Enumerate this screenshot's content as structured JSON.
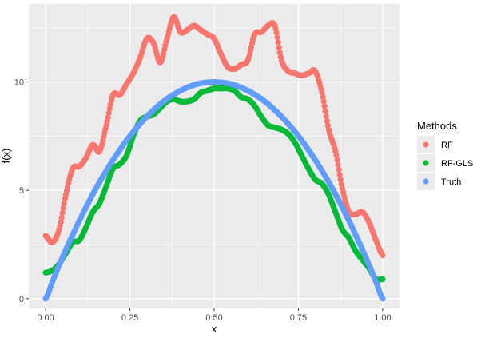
{
  "chart_data": {
    "type": "scatter",
    "title": "",
    "xlabel": "x",
    "ylabel": "f(x)",
    "xlim": [
      -0.05,
      1.05
    ],
    "ylim": [
      -0.45,
      13.6
    ],
    "x_ticks": [
      0,
      0.25,
      0.5,
      0.75,
      1
    ],
    "x_tick_labels": [
      "0.00",
      "0.25",
      "0.50",
      "0.75",
      "1.00"
    ],
    "y_ticks": [
      0,
      5,
      10
    ],
    "y_tick_labels": [
      "0",
      "5",
      "10"
    ],
    "grid": true,
    "legend": {
      "title": "Methods",
      "placement": "right"
    },
    "x": [
      0.0,
      0.02,
      0.04,
      0.06,
      0.08,
      0.1,
      0.12,
      0.14,
      0.16,
      0.18,
      0.2,
      0.22,
      0.24,
      0.26,
      0.28,
      0.3,
      0.32,
      0.34,
      0.36,
      0.38,
      0.4,
      0.42,
      0.44,
      0.46,
      0.48,
      0.5,
      0.52,
      0.54,
      0.56,
      0.58,
      0.6,
      0.62,
      0.64,
      0.66,
      0.68,
      0.7,
      0.72,
      0.74,
      0.76,
      0.78,
      0.8,
      0.82,
      0.84,
      0.86,
      0.88,
      0.9,
      0.92,
      0.94,
      0.96,
      0.98,
      1.0
    ],
    "series": [
      {
        "name": "RF",
        "color": "#F8766D",
        "values": [
          2.9,
          2.6,
          3.2,
          4.8,
          6.0,
          6.1,
          6.5,
          7.1,
          6.8,
          8.0,
          9.4,
          9.4,
          9.9,
          10.4,
          11.1,
          12.0,
          11.8,
          10.9,
          12.0,
          13.0,
          12.3,
          12.4,
          12.6,
          12.4,
          12.2,
          12.0,
          11.3,
          10.7,
          10.6,
          10.8,
          11.0,
          12.2,
          12.3,
          12.6,
          12.6,
          11.0,
          10.5,
          10.4,
          10.3,
          10.4,
          10.5,
          9.5,
          7.8,
          6.8,
          5.1,
          4.0,
          3.9,
          4.0,
          3.5,
          2.7,
          2.0
        ]
      },
      {
        "name": "RF-GLS",
        "color": "#00BA38",
        "values": [
          1.2,
          1.3,
          1.6,
          2.1,
          2.6,
          2.7,
          3.3,
          4.0,
          4.4,
          5.2,
          6.0,
          6.2,
          6.6,
          7.5,
          8.2,
          8.4,
          8.5,
          8.8,
          9.1,
          9.2,
          9.1,
          9.1,
          9.2,
          9.5,
          9.6,
          9.7,
          9.7,
          9.7,
          9.6,
          9.3,
          9.2,
          8.9,
          8.4,
          8.0,
          7.9,
          7.8,
          7.6,
          7.2,
          6.6,
          6.0,
          5.5,
          5.3,
          4.8,
          4.0,
          3.2,
          2.8,
          2.2,
          1.8,
          1.4,
          0.9,
          0.9
        ]
      },
      {
        "name": "Truth",
        "color": "#619CFF",
        "values": [
          0.0,
          0.78,
          1.54,
          2.26,
          2.94,
          3.6,
          4.22,
          4.82,
          5.38,
          5.9,
          6.4,
          6.86,
          7.3,
          7.7,
          8.06,
          8.4,
          8.7,
          8.98,
          9.22,
          9.42,
          9.6,
          9.74,
          9.86,
          9.94,
          9.98,
          10.0,
          9.98,
          9.94,
          9.86,
          9.74,
          9.6,
          9.42,
          9.22,
          8.98,
          8.7,
          8.4,
          8.06,
          7.7,
          7.3,
          6.86,
          6.4,
          5.9,
          5.38,
          4.82,
          4.22,
          3.6,
          2.94,
          2.26,
          1.54,
          0.78,
          0.0
        ]
      }
    ]
  }
}
